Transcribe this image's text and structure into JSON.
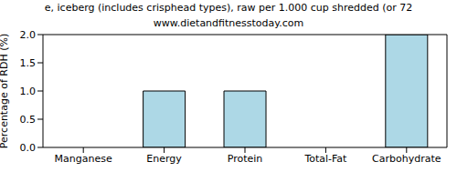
{
  "chart_data": {
    "type": "bar",
    "title": "e, iceberg (includes crisphead types), raw per 1.000 cup shredded (or 72",
    "subtitle": "www.dietandfitnesstoday.com",
    "y_label": "Percentage of RDH (%)",
    "categories": [
      "Manganese",
      "Energy",
      "Protein",
      "Total-Fat",
      "Carbohydrate"
    ],
    "values": [
      0,
      1,
      1,
      0,
      2
    ],
    "color": "#add8e6",
    "ylim": [
      0,
      2
    ],
    "yticks": [
      {
        "value": 0,
        "label": "0.0"
      },
      {
        "value": 0.5,
        "label": "0.5"
      },
      {
        "value": 1,
        "label": "1.0"
      },
      {
        "value": 1.5,
        "label": "1.5"
      },
      {
        "value": 2,
        "label": "2.0"
      }
    ],
    "grid": false
  }
}
